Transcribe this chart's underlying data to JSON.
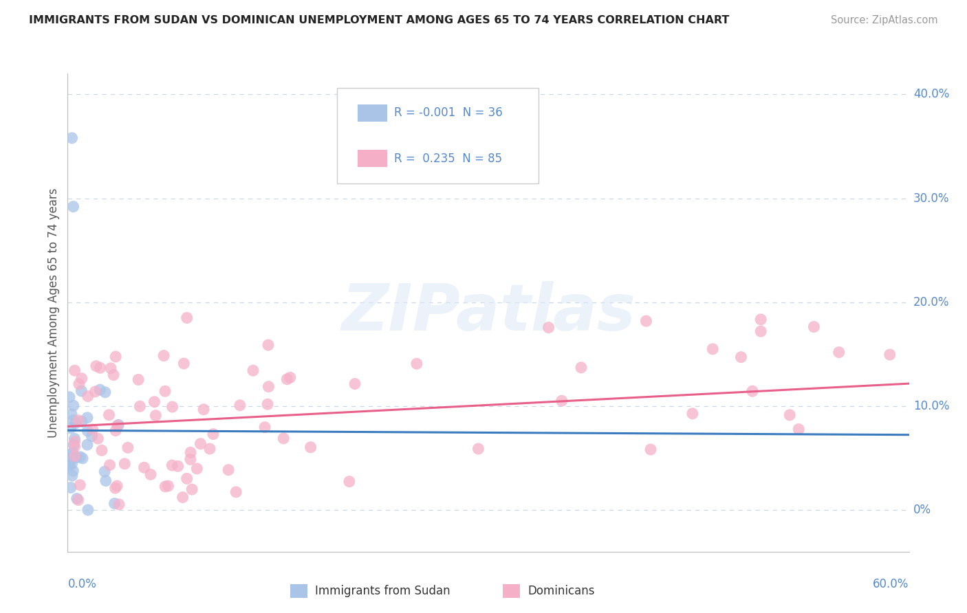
{
  "title": "IMMIGRANTS FROM SUDAN VS DOMINICAN UNEMPLOYMENT AMONG AGES 65 TO 74 YEARS CORRELATION CHART",
  "source": "Source: ZipAtlas.com",
  "ylabel": "Unemployment Among Ages 65 to 74 years",
  "legend_sudan": "Immigrants from Sudan",
  "legend_dominican": "Dominicans",
  "sudan_R": "-0.001",
  "sudan_N": "36",
  "dominican_R": "0.235",
  "dominican_N": "85",
  "sudan_color": "#aac4e8",
  "dominican_color": "#f5b0c8",
  "sudan_trend_color": "#3a7abf",
  "dominican_trend_color": "#e8608a",
  "background_color": "#ffffff",
  "grid_color": "#c8d8e8",
  "tick_color": "#5588cc",
  "xlim": [
    0.0,
    0.6
  ],
  "ylim": [
    -0.04,
    0.42
  ],
  "yticks": [
    0.0,
    0.1,
    0.2,
    0.3,
    0.4
  ],
  "ytick_labels": [
    "0%",
    "10.0%",
    "20.0%",
    "30.0%",
    "40.0%"
  ],
  "xtick_labels": [
    "0.0%",
    "60.0%"
  ],
  "watermark": "ZIPatlas"
}
